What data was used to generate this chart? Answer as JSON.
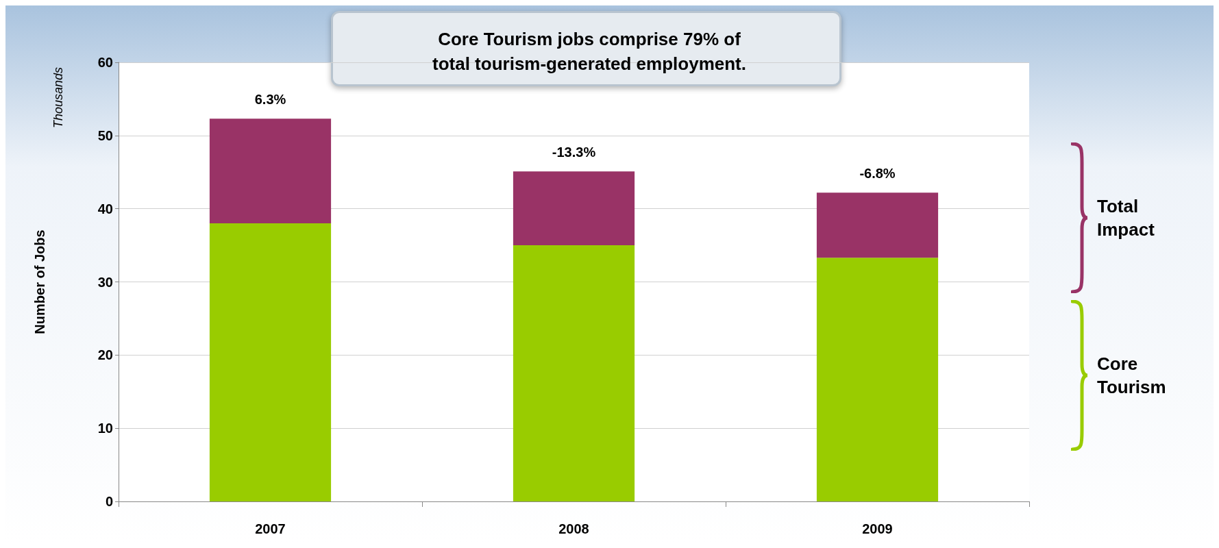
{
  "chart_data": {
    "type": "bar",
    "title": "Core Tourism jobs comprise 79% of\ntotal tourism-generated employment.",
    "ylabel": "Number of Jobs",
    "annotations": [
      "Thousands",
      {
        "text": "6.3%",
        "x": "2007",
        "y": 52.3
      },
      {
        "text": "-13.3%",
        "x": "2008",
        "y": 45.1
      },
      {
        "text": "-6.8%",
        "x": "2009",
        "y": 42.2
      }
    ],
    "categories": [
      "2007",
      "2008",
      "2009"
    ],
    "series": [
      {
        "name": "Core Tourism",
        "color": "#99cc00",
        "values": [
          38,
          35,
          33.3
        ]
      },
      {
        "name": "Total Impact",
        "color": "#993366",
        "values": [
          14.3,
          10.1,
          8.9
        ]
      }
    ],
    "stacked": true,
    "ylim": [
      0,
      60
    ],
    "yticks": [
      0,
      10,
      20,
      30,
      40,
      50,
      60
    ],
    "grid": "y",
    "legend": "right"
  }
}
